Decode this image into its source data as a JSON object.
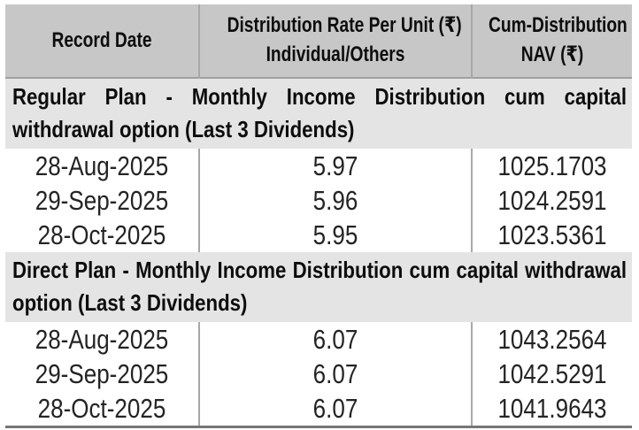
{
  "table": {
    "header": {
      "record_date": "Record Date",
      "rate_line1": "Distribution Rate Per Unit (₹)",
      "rate_line2": "Individual/Others",
      "nav_line1": "Cum-Distribution",
      "nav_line2": "NAV (₹)"
    },
    "sections": [
      {
        "title": "Regular Plan - Monthly Income Distribution cum capital withdrawal option (Last 3 Dividends)",
        "rows": [
          {
            "record_date": "28-Aug-2025",
            "rate": "5.97",
            "nav": "1025.1703"
          },
          {
            "record_date": "29-Sep-2025",
            "rate": "5.96",
            "nav": "1024.2591"
          },
          {
            "record_date": "28-Oct-2025",
            "rate": "5.95",
            "nav": "1023.5361"
          }
        ]
      },
      {
        "title": "Direct Plan - Monthly Income Distribution cum capital withdrawal option (Last 3 Dividends)",
        "rows": [
          {
            "record_date": "28-Aug-2025",
            "rate": "6.07",
            "nav": "1043.2564"
          },
          {
            "record_date": "29-Sep-2025",
            "rate": "6.07",
            "nav": "1042.5291"
          },
          {
            "record_date": "28-Oct-2025",
            "rate": "6.07",
            "nav": "1041.9643"
          }
        ]
      }
    ],
    "colors": {
      "header_bg": "#c7c7c7",
      "section_bg": "#e4e4e4",
      "column_divider": "#a8a8a8",
      "header_underline": "#a0a0a0",
      "bottom_border": "#767676",
      "text": "#0d0d0d"
    }
  }
}
